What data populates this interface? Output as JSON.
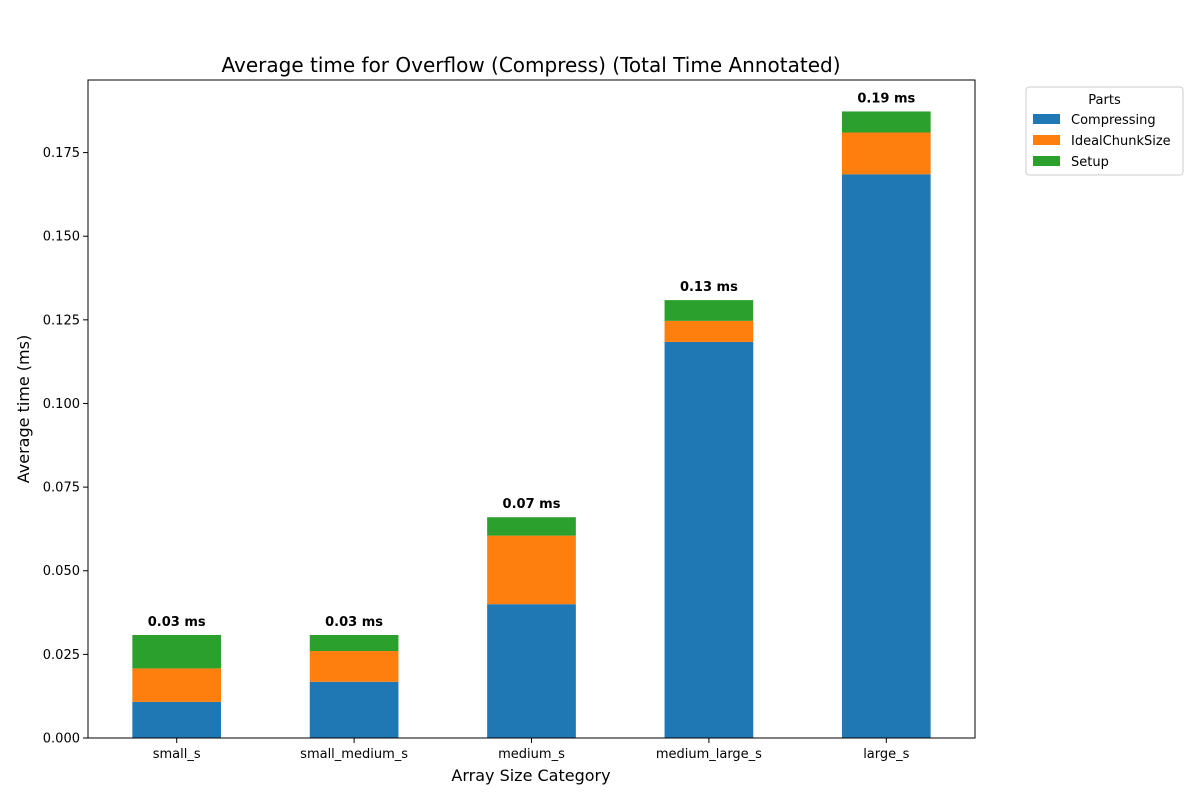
{
  "chart_data": {
    "type": "bar",
    "stacked": true,
    "title": "Average time for Overflow (Compress) (Total Time Annotated)",
    "xlabel": "Array Size Category",
    "ylabel": "Average time (ms)",
    "categories": [
      "small_s",
      "small_medium_s",
      "medium_s",
      "medium_large_s",
      "large_s"
    ],
    "series": [
      {
        "name": "Compressing",
        "color": "#1f77b4",
        "values": [
          0.0108,
          0.0168,
          0.04,
          0.1184,
          0.1685
        ]
      },
      {
        "name": "IdealChunkSize",
        "color": "#ff7f0e",
        "values": [
          0.01,
          0.0092,
          0.0205,
          0.0063,
          0.0125
        ]
      },
      {
        "name": "Setup",
        "color": "#2ca02c",
        "values": [
          0.01,
          0.0048,
          0.0055,
          0.0062,
          0.0063
        ]
      }
    ],
    "total_labels": [
      "0.03 ms",
      "0.03 ms",
      "0.07 ms",
      "0.13 ms",
      "0.19 ms"
    ],
    "y_ticks": [
      0.0,
      0.025,
      0.05,
      0.075,
      0.1,
      0.125,
      0.15,
      0.175
    ],
    "y_tick_labels": [
      "0.000",
      "0.025",
      "0.050",
      "0.075",
      "0.100",
      "0.125",
      "0.150",
      "0.175"
    ],
    "ylim": [
      0,
      0.1967
    ],
    "legend": {
      "title": "Parts",
      "placement": "outside-top-right"
    },
    "grid": false
  }
}
